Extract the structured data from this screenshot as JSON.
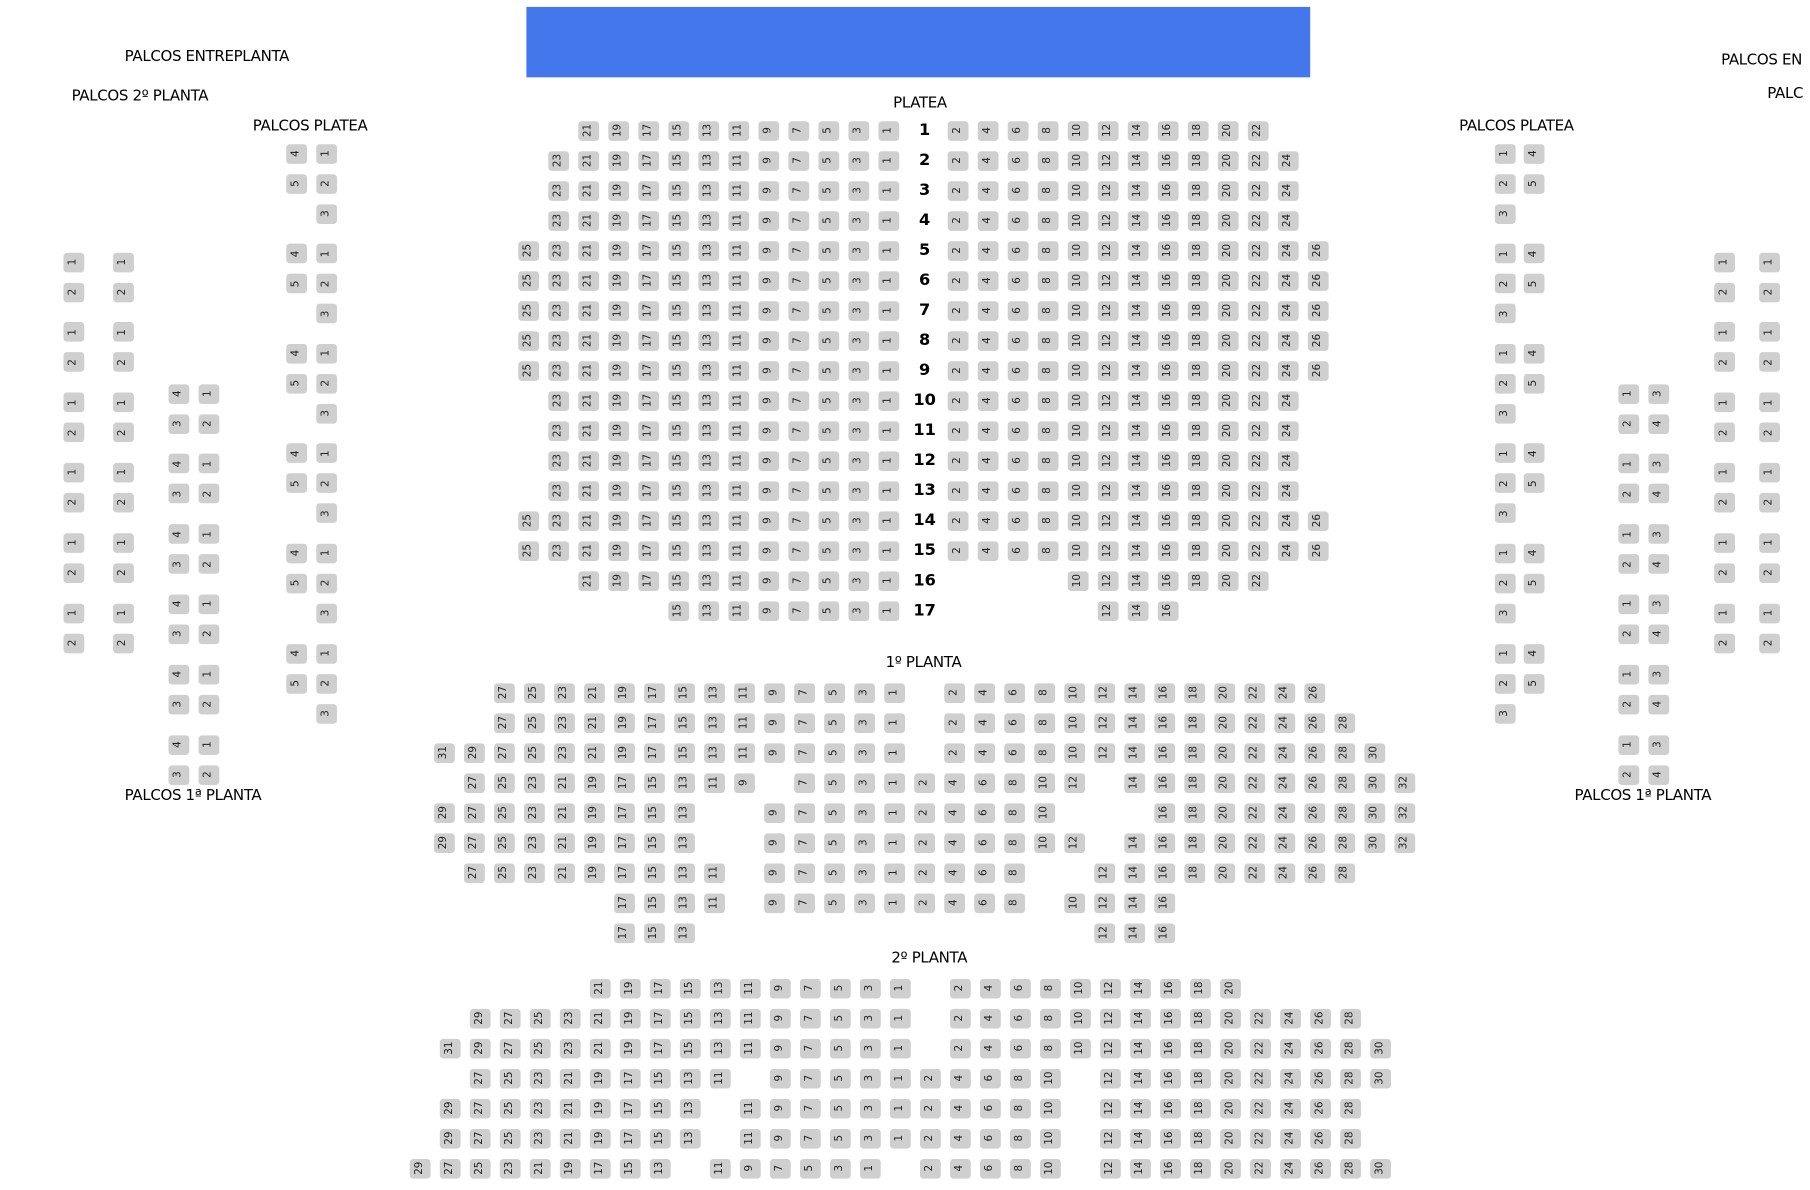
{
  "colors": {
    "stage": "#4577ec",
    "seat": "#cfcfcf",
    "background": "#ffffff"
  },
  "labels": {
    "left_entreplanta": "PALCOS ENTREPLANTA",
    "left_2a_planta": "PALCOS 2º PLANTA",
    "left_platea": "PALCOS PLATEA",
    "left_1a_planta": "PALCOS 1ª PLANTA",
    "platea": "PLATEA",
    "planta1": "1º PLANTA",
    "planta2": "2º PLANTA",
    "right_platea": "PALCOS PLATEA",
    "right_1a_planta": "PALCOS 1ª PLANTA",
    "right_entreplanta": "PALCOS EN",
    "right_2a_planta": "PALC"
  },
  "platea": {
    "rows": [
      {
        "row": "1",
        "left": [
          21,
          19,
          17,
          15,
          13,
          11,
          9,
          7,
          5,
          3,
          1
        ],
        "right": [
          2,
          4,
          6,
          8,
          10,
          12,
          14,
          16,
          18,
          20,
          22
        ]
      },
      {
        "row": "2",
        "left": [
          23,
          21,
          19,
          17,
          15,
          13,
          11,
          9,
          7,
          5,
          3,
          1
        ],
        "right": [
          2,
          4,
          6,
          8,
          10,
          12,
          14,
          16,
          18,
          20,
          22,
          24
        ]
      },
      {
        "row": "3",
        "left": [
          23,
          21,
          19,
          17,
          15,
          13,
          11,
          9,
          7,
          5,
          3,
          1
        ],
        "right": [
          2,
          4,
          6,
          8,
          10,
          12,
          14,
          16,
          18,
          20,
          22,
          24
        ]
      },
      {
        "row": "4",
        "left": [
          23,
          21,
          19,
          17,
          15,
          13,
          11,
          9,
          7,
          5,
          3,
          1
        ],
        "right": [
          2,
          4,
          6,
          8,
          10,
          12,
          14,
          16,
          18,
          20,
          22,
          24
        ]
      },
      {
        "row": "5",
        "left": [
          25,
          23,
          21,
          19,
          17,
          15,
          13,
          11,
          9,
          7,
          5,
          3,
          1
        ],
        "right": [
          2,
          4,
          6,
          8,
          10,
          12,
          14,
          16,
          18,
          20,
          22,
          24,
          26
        ]
      },
      {
        "row": "6",
        "left": [
          25,
          23,
          21,
          19,
          17,
          15,
          13,
          11,
          9,
          7,
          5,
          3,
          1
        ],
        "right": [
          2,
          4,
          6,
          8,
          10,
          12,
          14,
          16,
          18,
          20,
          22,
          24,
          26
        ]
      },
      {
        "row": "7",
        "left": [
          25,
          23,
          21,
          19,
          17,
          15,
          13,
          11,
          9,
          7,
          5,
          3,
          1
        ],
        "right": [
          2,
          4,
          6,
          8,
          10,
          12,
          14,
          16,
          18,
          20,
          22,
          24,
          26
        ]
      },
      {
        "row": "8",
        "left": [
          25,
          23,
          21,
          19,
          17,
          15,
          13,
          11,
          9,
          7,
          5,
          3,
          1
        ],
        "right": [
          2,
          4,
          6,
          8,
          10,
          12,
          14,
          16,
          18,
          20,
          22,
          24,
          26
        ]
      },
      {
        "row": "9",
        "left": [
          25,
          23,
          21,
          19,
          17,
          15,
          13,
          11,
          9,
          7,
          5,
          3,
          1
        ],
        "right": [
          2,
          4,
          6,
          8,
          10,
          12,
          14,
          16,
          18,
          20,
          22,
          24,
          26
        ]
      },
      {
        "row": "10",
        "left": [
          23,
          21,
          19,
          17,
          15,
          13,
          11,
          9,
          7,
          5,
          3,
          1
        ],
        "right": [
          2,
          4,
          6,
          8,
          10,
          12,
          14,
          16,
          18,
          20,
          22,
          24
        ]
      },
      {
        "row": "11",
        "left": [
          23,
          21,
          19,
          17,
          15,
          13,
          11,
          9,
          7,
          5,
          3,
          1
        ],
        "right": [
          2,
          4,
          6,
          8,
          10,
          12,
          14,
          16,
          18,
          20,
          22,
          24
        ]
      },
      {
        "row": "12",
        "left": [
          23,
          21,
          19,
          17,
          15,
          13,
          11,
          9,
          7,
          5,
          3,
          1
        ],
        "right": [
          2,
          4,
          6,
          8,
          10,
          12,
          14,
          16,
          18,
          20,
          22,
          24
        ]
      },
      {
        "row": "13",
        "left": [
          23,
          21,
          19,
          17,
          15,
          13,
          11,
          9,
          7,
          5,
          3,
          1
        ],
        "right": [
          2,
          4,
          6,
          8,
          10,
          12,
          14,
          16,
          18,
          20,
          22,
          24
        ]
      },
      {
        "row": "14",
        "left": [
          25,
          23,
          21,
          19,
          17,
          15,
          13,
          11,
          9,
          7,
          5,
          3,
          1
        ],
        "right": [
          2,
          4,
          6,
          8,
          10,
          12,
          14,
          16,
          18,
          20,
          22,
          24,
          26
        ]
      },
      {
        "row": "15",
        "left": [
          25,
          23,
          21,
          19,
          17,
          15,
          13,
          11,
          9,
          7,
          5,
          3,
          1
        ],
        "right": [
          2,
          4,
          6,
          8,
          10,
          12,
          14,
          16,
          18,
          20,
          22,
          24,
          26
        ]
      },
      {
        "row": "16",
        "left": [
          21,
          19,
          17,
          15,
          13,
          11,
          9,
          7,
          5,
          3,
          1
        ],
        "right": [
          10,
          12,
          14,
          16,
          18,
          20,
          22
        ]
      },
      {
        "row": "17",
        "left": [
          15,
          13,
          11,
          9,
          7,
          5,
          3,
          1
        ],
        "right": [
          12,
          14,
          16
        ]
      }
    ]
  },
  "planta1": {
    "rows": [
      [
        null,
        null,
        27,
        25,
        23,
        21,
        19,
        17,
        15,
        13,
        11,
        9,
        7,
        5,
        3,
        1,
        null,
        2,
        4,
        6,
        8,
        10,
        12,
        14,
        16,
        18,
        20,
        22,
        24,
        26
      ],
      [
        null,
        null,
        27,
        25,
        23,
        21,
        19,
        17,
        15,
        13,
        11,
        9,
        7,
        5,
        3,
        1,
        null,
        2,
        4,
        6,
        8,
        10,
        12,
        14,
        16,
        18,
        20,
        22,
        24,
        26,
        28
      ],
      [
        31,
        29,
        27,
        25,
        23,
        21,
        19,
        17,
        15,
        13,
        11,
        9,
        7,
        5,
        3,
        1,
        null,
        2,
        4,
        6,
        8,
        10,
        12,
        14,
        16,
        18,
        20,
        22,
        24,
        26,
        28,
        30
      ],
      [
        null,
        27,
        25,
        23,
        21,
        19,
        17,
        15,
        13,
        11,
        9,
        null,
        7,
        5,
        3,
        1,
        2,
        4,
        6,
        8,
        10,
        12,
        null,
        14,
        16,
        18,
        20,
        22,
        24,
        26,
        28,
        30,
        32
      ],
      [
        29,
        27,
        25,
        23,
        21,
        19,
        17,
        15,
        13,
        null,
        null,
        9,
        7,
        5,
        3,
        1,
        2,
        4,
        6,
        8,
        10,
        null,
        null,
        null,
        16,
        18,
        20,
        22,
        24,
        26,
        28,
        30,
        32
      ],
      [
        29,
        27,
        25,
        23,
        21,
        19,
        17,
        15,
        13,
        null,
        null,
        9,
        7,
        5,
        3,
        1,
        2,
        4,
        6,
        8,
        10,
        12,
        null,
        14,
        16,
        18,
        20,
        22,
        24,
        26,
        28,
        30,
        32
      ],
      [
        null,
        27,
        25,
        23,
        21,
        19,
        17,
        15,
        13,
        11,
        null,
        9,
        7,
        5,
        3,
        1,
        2,
        4,
        6,
        8,
        null,
        null,
        12,
        14,
        16,
        18,
        20,
        22,
        24,
        26,
        28
      ],
      [
        null,
        null,
        null,
        null,
        null,
        null,
        17,
        15,
        13,
        11,
        null,
        9,
        7,
        5,
        3,
        1,
        2,
        4,
        6,
        8,
        null,
        10,
        12,
        14,
        16
      ],
      [
        null,
        null,
        null,
        null,
        null,
        null,
        17,
        15,
        13,
        null,
        null,
        null,
        null,
        null,
        null,
        null,
        null,
        null,
        null,
        null,
        null,
        null,
        12,
        14,
        16
      ]
    ]
  },
  "planta2": {
    "rows": [
      [
        null,
        null,
        null,
        null,
        null,
        null,
        21,
        19,
        17,
        15,
        13,
        11,
        9,
        7,
        5,
        3,
        1,
        null,
        2,
        4,
        6,
        8,
        10,
        12,
        14,
        16,
        18,
        20
      ],
      [
        null,
        null,
        29,
        27,
        25,
        23,
        21,
        19,
        17,
        15,
        13,
        11,
        9,
        7,
        5,
        3,
        1,
        null,
        2,
        4,
        6,
        8,
        10,
        12,
        14,
        16,
        18,
        20,
        22,
        24,
        26,
        28
      ],
      [
        null,
        31,
        29,
        27,
        25,
        23,
        21,
        19,
        17,
        15,
        13,
        11,
        9,
        7,
        5,
        3,
        1,
        null,
        2,
        4,
        6,
        8,
        10,
        12,
        14,
        16,
        18,
        20,
        22,
        24,
        26,
        28,
        30
      ],
      [
        null,
        null,
        27,
        25,
        23,
        21,
        19,
        17,
        15,
        13,
        11,
        null,
        9,
        7,
        5,
        3,
        1,
        2,
        4,
        6,
        8,
        10,
        null,
        12,
        14,
        16,
        18,
        20,
        22,
        24,
        26,
        28,
        30
      ],
      [
        null,
        29,
        27,
        25,
        23,
        21,
        19,
        17,
        15,
        13,
        null,
        11,
        9,
        7,
        5,
        3,
        1,
        2,
        4,
        6,
        8,
        10,
        null,
        12,
        14,
        16,
        18,
        20,
        22,
        24,
        26,
        28
      ],
      [
        null,
        29,
        27,
        25,
        23,
        21,
        19,
        17,
        15,
        13,
        null,
        11,
        9,
        7,
        5,
        3,
        1,
        2,
        4,
        6,
        8,
        10,
        null,
        12,
        14,
        16,
        18,
        20,
        22,
        24,
        26,
        28
      ],
      [
        29,
        27,
        25,
        23,
        21,
        19,
        17,
        15,
        13,
        null,
        11,
        9,
        7,
        5,
        3,
        1,
        null,
        2,
        4,
        6,
        8,
        10,
        null,
        12,
        14,
        16,
        18,
        20,
        22,
        24,
        26,
        28,
        30
      ]
    ]
  },
  "palcos": {
    "left_platea": [
      [
        [
          4,
          1
        ],
        [
          5,
          2
        ],
        [
          null,
          3
        ]
      ],
      [
        [
          4,
          1
        ],
        [
          5,
          2
        ],
        [
          null,
          3
        ]
      ],
      [
        [
          4,
          1
        ],
        [
          5,
          2
        ],
        [
          null,
          3
        ]
      ],
      [
        [
          4,
          1
        ],
        [
          5,
          2
        ],
        [
          null,
          3
        ]
      ],
      [
        [
          4,
          1
        ],
        [
          5,
          2
        ],
        [
          null,
          3
        ]
      ],
      [
        [
          4,
          1
        ],
        [
          5,
          2
        ],
        [
          null,
          3
        ]
      ]
    ],
    "left_1a_planta": [
      [
        [
          4,
          1
        ],
        [
          3,
          2
        ]
      ],
      [
        [
          4,
          1
        ],
        [
          3,
          2
        ]
      ],
      [
        [
          4,
          1
        ],
        [
          3,
          2
        ]
      ],
      [
        [
          4,
          1
        ],
        [
          3,
          2
        ]
      ],
      [
        [
          4,
          1
        ],
        [
          3,
          2
        ]
      ],
      [
        [
          4,
          1
        ],
        [
          3,
          2
        ]
      ]
    ],
    "left_upper": [
      [
        [
          1,
          1
        ],
        [
          2,
          2
        ]
      ],
      [
        [
          1,
          1
        ],
        [
          2,
          2
        ]
      ],
      [
        [
          1,
          1
        ],
        [
          2,
          2
        ]
      ],
      [
        [
          1,
          1
        ],
        [
          2,
          2
        ]
      ],
      [
        [
          1,
          1
        ],
        [
          2,
          2
        ]
      ],
      [
        [
          1,
          1
        ],
        [
          2,
          2
        ]
      ]
    ],
    "right_platea": [
      [
        [
          1,
          4
        ],
        [
          2,
          5
        ],
        [
          3,
          null
        ]
      ],
      [
        [
          1,
          4
        ],
        [
          2,
          5
        ],
        [
          3,
          null
        ]
      ],
      [
        [
          1,
          4
        ],
        [
          2,
          5
        ],
        [
          3,
          null
        ]
      ],
      [
        [
          1,
          4
        ],
        [
          2,
          5
        ],
        [
          3,
          null
        ]
      ],
      [
        [
          1,
          4
        ],
        [
          2,
          5
        ],
        [
          3,
          null
        ]
      ],
      [
        [
          1,
          4
        ],
        [
          2,
          5
        ],
        [
          3,
          null
        ]
      ]
    ],
    "right_1a_planta": [
      [
        [
          1,
          3
        ],
        [
          2,
          4
        ]
      ],
      [
        [
          1,
          3
        ],
        [
          2,
          4
        ]
      ],
      [
        [
          1,
          3
        ],
        [
          2,
          4
        ]
      ],
      [
        [
          1,
          3
        ],
        [
          2,
          4
        ]
      ],
      [
        [
          1,
          3
        ],
        [
          2,
          4
        ]
      ],
      [
        [
          1,
          3
        ],
        [
          2,
          4
        ]
      ]
    ],
    "right_upper": [
      [
        [
          1,
          1
        ],
        [
          2,
          2
        ]
      ],
      [
        [
          1,
          1
        ],
        [
          2,
          2
        ]
      ],
      [
        [
          1,
          1
        ],
        [
          2,
          2
        ]
      ],
      [
        [
          1,
          1
        ],
        [
          2,
          2
        ]
      ],
      [
        [
          1,
          1
        ],
        [
          2,
          2
        ]
      ],
      [
        [
          1,
          1
        ],
        [
          2,
          2
        ]
      ]
    ]
  }
}
